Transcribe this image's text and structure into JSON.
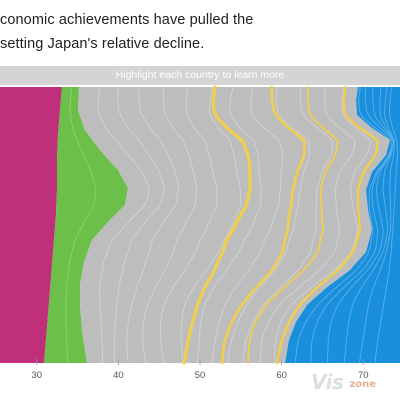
{
  "header": {
    "line1": "conomic achievements have pulled the",
    "line2": "setting Japan's relative decline."
  },
  "highlight_bar": {
    "label": "Highlight each country to learn more"
  },
  "watermark": {
    "big": "Vis",
    "small": "zone"
  },
  "colors": {
    "magenta": "#c0307a",
    "green": "#6cc04a",
    "grey": "#bdbdbd",
    "yellow": "#f2cf4a",
    "blue": "#1a8fdc"
  },
  "chart_data": {
    "type": "area",
    "x_ticks": [
      30,
      40,
      50,
      60,
      70
    ],
    "x_tick_labels": [
      "30",
      "40",
      "50",
      "60",
      "70"
    ],
    "xlim": [
      25.5,
      74.5
    ],
    "series": [
      {
        "color": "#c0307a"
      },
      {
        "color": "#6cc04a"
      },
      {
        "color": "#bdbdbd"
      },
      {
        "color": "#1a8fdc"
      }
    ],
    "highlighted_stream_color": "#f2cf4a"
  }
}
